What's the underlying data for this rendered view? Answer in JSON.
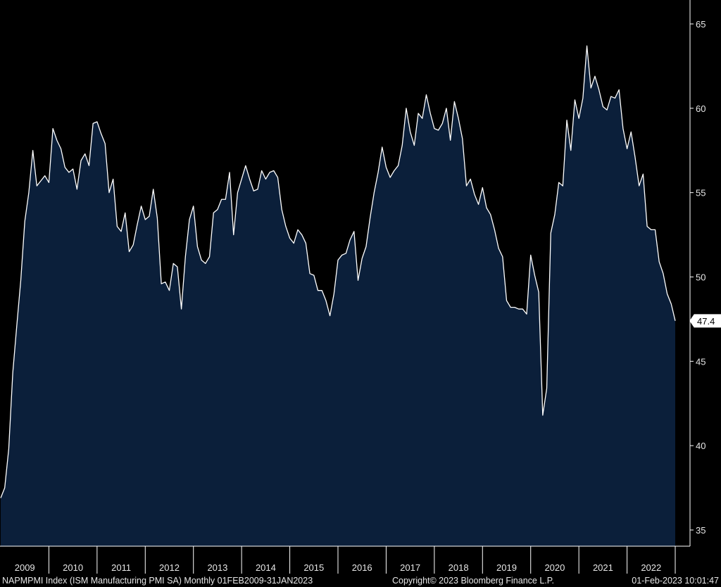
{
  "chart_data": {
    "type": "area",
    "grid": false,
    "ylim": [
      34,
      66
    ],
    "yticks": [
      35,
      40,
      45,
      50,
      55,
      60,
      65
    ],
    "x_start": "2009-01",
    "x_end": "2023-01",
    "year_labels": [
      "2009",
      "2010",
      "2011",
      "2012",
      "2013",
      "2014",
      "2015",
      "2016",
      "2017",
      "2018",
      "2019",
      "2020",
      "2021",
      "2022"
    ],
    "last_value_label": "47.4",
    "series": [
      {
        "values": [
          36.9,
          37.5,
          39.8,
          44.3,
          47.1,
          49.8,
          53.3,
          55.0,
          57.5,
          55.4,
          55.7,
          56.0,
          55.6,
          58.8,
          58.1,
          57.6,
          56.5,
          56.2,
          56.4,
          55.2,
          56.9,
          57.3,
          56.6,
          59.1,
          59.2,
          58.5,
          57.9,
          55.0,
          55.8,
          53.0,
          52.7,
          53.8,
          51.5,
          51.9,
          53.1,
          54.2,
          53.4,
          53.6,
          55.2,
          53.5,
          49.6,
          49.7,
          49.2,
          50.8,
          50.6,
          48.1,
          51.2,
          53.4,
          54.2,
          51.8,
          51.0,
          50.8,
          51.2,
          53.8,
          54.0,
          54.6,
          54.6,
          56.2,
          52.5,
          55.0,
          55.8,
          56.6,
          55.8,
          55.1,
          55.2,
          56.3,
          55.8,
          56.2,
          56.3,
          55.9,
          54.0,
          53.0,
          52.3,
          52.0,
          52.8,
          52.5,
          52.0,
          50.2,
          50.1,
          49.2,
          49.2,
          48.6,
          47.7,
          49.0,
          51.0,
          51.3,
          51.4,
          52.2,
          52.7,
          49.8,
          51.1,
          51.8,
          53.5,
          55.0,
          56.2,
          57.7,
          56.5,
          55.9,
          56.3,
          56.6,
          57.8,
          60.0,
          58.6,
          57.8,
          59.7,
          59.4,
          60.8,
          59.7,
          58.8,
          58.7,
          59.1,
          60.0,
          58.1,
          60.4,
          59.4,
          58.2,
          55.4,
          55.8,
          54.9,
          54.3,
          55.3,
          54.1,
          53.7,
          52.8,
          51.7,
          51.2,
          48.6,
          48.2,
          48.2,
          48.1,
          48.1,
          47.8,
          51.3,
          50.1,
          49.1,
          41.8,
          43.4,
          52.6,
          53.7,
          55.6,
          55.4,
          59.3,
          57.5,
          60.5,
          59.4,
          60.6,
          63.7,
          61.2,
          61.9,
          61.1,
          60.1,
          59.9,
          60.7,
          60.6,
          61.1,
          58.8,
          57.6,
          58.6,
          57.1,
          55.4,
          56.1,
          53.0,
          52.8,
          52.8,
          50.9,
          50.2,
          49.0,
          48.4,
          47.4
        ]
      }
    ]
  },
  "footer": {
    "ticker_info": "NAPMPMI Index (ISM Manufacturing PMI SA)  Monthly 01FEB2009-31JAN2023",
    "copyright": "Copyright© 2023 Bloomberg Finance L.P.",
    "timestamp": "01-Feb-2023 10:01:47"
  },
  "colors": {
    "background": "#000000",
    "fill": "#0b1f3a",
    "line": "#ffffff",
    "axis": "#ffffff",
    "text": "#e6e6e6"
  }
}
